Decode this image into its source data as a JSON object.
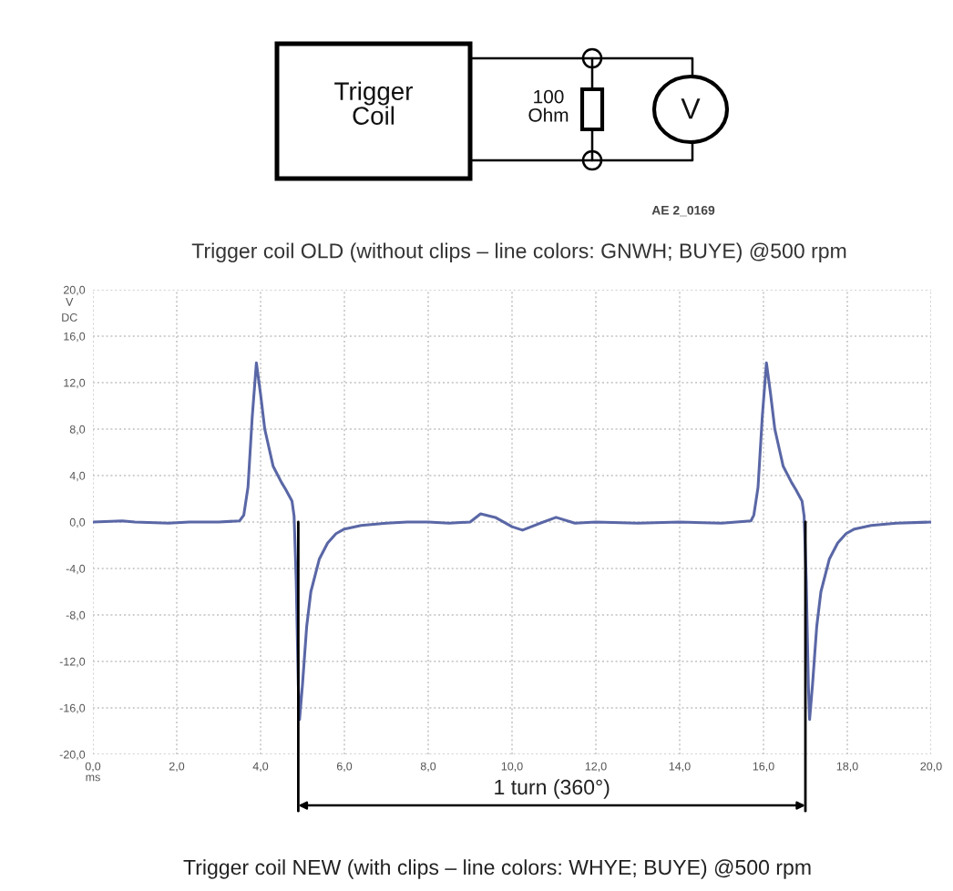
{
  "chart_data": {
    "type": "line",
    "title": "Trigger coil OLD (without clips – line colors: GNWH; BUYE) @500 rpm",
    "xlabel": "ms",
    "ylabel": "V\nDC",
    "annotations": [
      "Trigger\nCoil",
      "100\nOhm",
      "V",
      "AE 2_0169",
      "1 turn (360°)",
      "Trigger coil NEW (with clips – line colors: WHYE; BUYE) @500 rpm"
    ],
    "series": [
      {
        "color": "#5a67a6",
        "x": [
          0.0,
          0.7,
          1.0,
          1.8,
          2.3,
          3.0,
          3.5,
          3.6,
          3.7,
          3.8,
          3.9,
          4.0,
          4.1,
          4.3,
          4.5,
          4.6,
          4.75,
          4.8,
          4.85,
          4.9,
          4.93,
          5.0,
          5.1,
          5.2,
          5.4,
          5.6,
          5.8,
          6.0,
          6.4,
          7.0,
          7.5,
          8.0,
          8.5,
          9.0,
          9.25,
          9.6,
          10.0,
          10.25,
          10.6,
          11.05,
          11.5,
          12.0,
          13.0,
          14.0,
          15.0,
          15.7,
          15.77,
          15.87,
          15.97,
          16.07,
          16.17,
          16.27,
          16.47,
          16.67,
          16.77,
          16.92,
          16.97,
          17.02,
          17.07,
          17.1,
          17.17,
          17.27,
          17.37,
          17.57,
          17.77,
          17.97,
          18.17,
          18.57,
          19.17,
          20.0
        ],
        "values": [
          0.0,
          0.1,
          0.0,
          -0.1,
          0.0,
          0.0,
          0.1,
          0.6,
          3.0,
          9.0,
          13.7,
          11.0,
          8.0,
          4.8,
          3.4,
          2.8,
          1.8,
          0.5,
          -5.0,
          -14.0,
          -17.0,
          -14.0,
          -9.0,
          -6.0,
          -3.2,
          -1.8,
          -1.0,
          -0.6,
          -0.3,
          -0.1,
          0.0,
          0.0,
          -0.1,
          0.0,
          0.7,
          0.4,
          -0.4,
          -0.7,
          -0.2,
          0.4,
          -0.1,
          0.0,
          -0.1,
          0.0,
          -0.1,
          0.1,
          0.6,
          3.0,
          9.0,
          13.7,
          11.0,
          8.0,
          4.8,
          3.4,
          2.8,
          1.8,
          0.5,
          -5.0,
          -14.0,
          -17.0,
          -14.0,
          -9.0,
          -6.0,
          -3.2,
          -1.8,
          -1.0,
          -0.6,
          -0.3,
          -0.1,
          0.0
        ]
      }
    ],
    "xlim": [
      0,
      20
    ],
    "ylim": [
      -20,
      20
    ],
    "xticks": [
      {
        "value": 0,
        "label": "0,0"
      },
      {
        "value": 2,
        "label": "2,0"
      },
      {
        "value": 4,
        "label": "4,0"
      },
      {
        "value": 6,
        "label": "6,0"
      },
      {
        "value": 8,
        "label": "8,0"
      },
      {
        "value": 10,
        "label": "10,0"
      },
      {
        "value": 12,
        "label": "12,0"
      },
      {
        "value": 14,
        "label": "14,0"
      },
      {
        "value": 16,
        "label": "16,0"
      },
      {
        "value": 18,
        "label": "18,0"
      },
      {
        "value": 20,
        "label": "20,0"
      }
    ],
    "yticks": [
      {
        "value": -20,
        "label": "-20,0"
      },
      {
        "value": -16,
        "label": "-16,0"
      },
      {
        "value": -12,
        "label": "-12,0"
      },
      {
        "value": -8,
        "label": "-8,0"
      },
      {
        "value": -4,
        "label": "-4,0"
      },
      {
        "value": 0,
        "label": "0,0"
      },
      {
        "value": 4,
        "label": "4,0"
      },
      {
        "value": 8,
        "label": "8,0"
      },
      {
        "value": 12,
        "label": "12,0"
      },
      {
        "value": 16,
        "label": "16,0"
      },
      {
        "value": 20,
        "label": "20,0"
      }
    ],
    "ref_lines": [
      {
        "axis": "x",
        "value": 4.9,
        "color": "#000000"
      },
      {
        "axis": "x",
        "value": 17.0,
        "color": "#000000"
      }
    ],
    "grid": true
  }
}
